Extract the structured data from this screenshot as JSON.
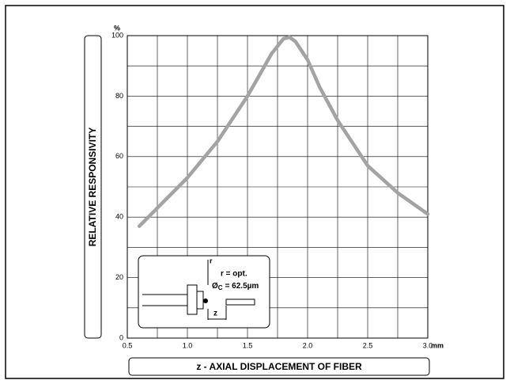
{
  "chart_data": {
    "type": "line",
    "y_label": "RELATIVE RESPONSIVITY",
    "x_label": "z - AXIAL DISPLACEMENT OF FIBER",
    "y_unit": "%",
    "x_unit": "mm",
    "x": [
      0.6,
      0.8,
      1.0,
      1.25,
      1.5,
      1.6,
      1.7,
      1.8,
      1.85,
      1.9,
      2.0,
      2.1,
      2.25,
      2.5,
      2.75,
      3.0
    ],
    "series": [
      {
        "name": "responsivity",
        "color": "#a3a3a3",
        "values": [
          37,
          45,
          53,
          65,
          80,
          87,
          94,
          99,
          99.5,
          98,
          92,
          83,
          72,
          57,
          48,
          41
        ]
      }
    ],
    "xlim": [
      0.5,
      3.0
    ],
    "xticks": [
      0.5,
      {
        "value": 1,
        "label": "1.0"
      },
      1.5,
      {
        "value": 2,
        "label": "2.0"
      },
      2.5,
      {
        "value": 3,
        "label": "3.0"
      }
    ],
    "xminorticks": [
      0.75,
      1.25,
      1.75,
      2.25,
      2.75
    ],
    "ylim": [
      0,
      100
    ],
    "yticks": [
      0,
      20,
      40,
      60,
      80,
      100
    ],
    "yminorticks": [
      10,
      30,
      50,
      70,
      90
    ],
    "grid": true,
    "inset": {
      "r_label": "r",
      "r_text": "r = opt.",
      "diameter_symbol": "Ø",
      "diameter_sub": "C",
      "diameter_text": "= 62.5µm",
      "z_label": "z"
    }
  }
}
